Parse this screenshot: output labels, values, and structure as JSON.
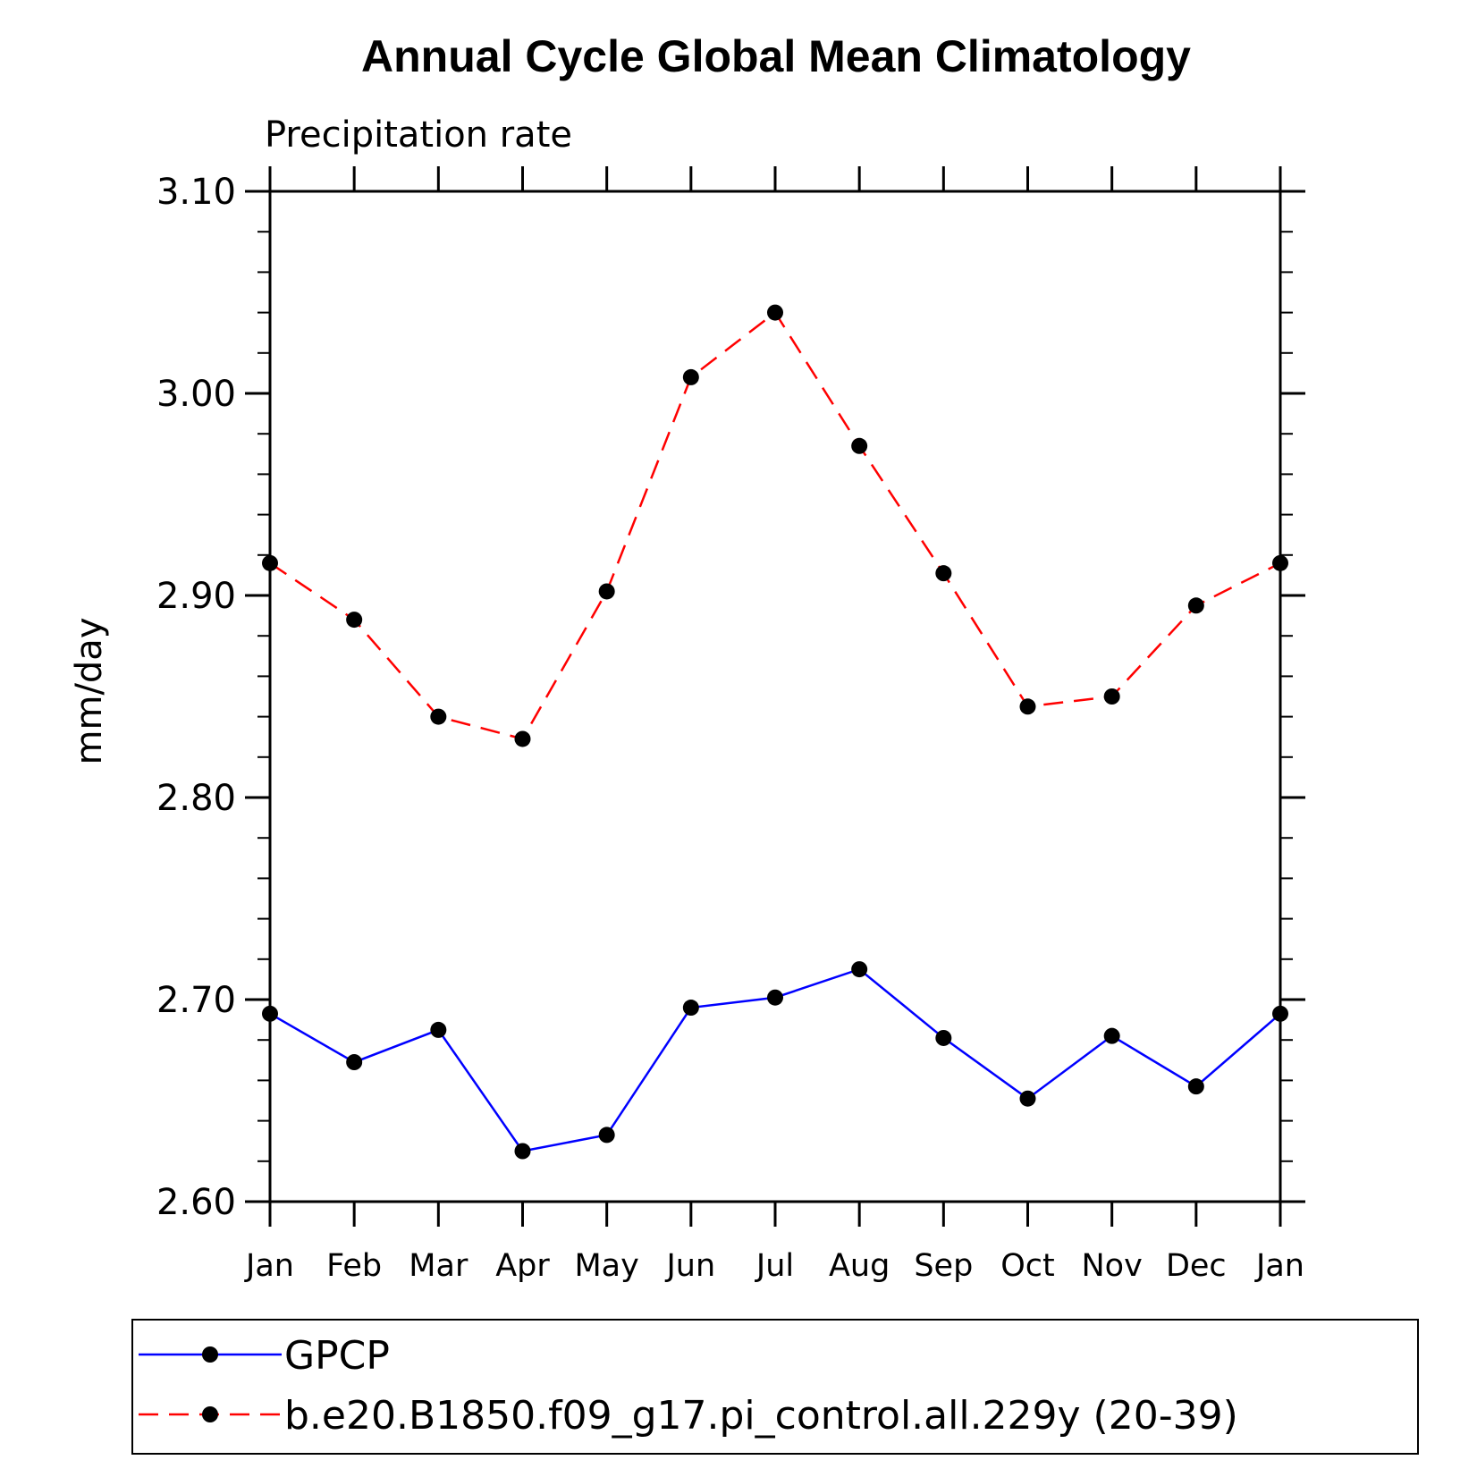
{
  "chart_data": {
    "type": "line",
    "title": "Annual Cycle Global Mean Climatology",
    "subtitle": "Precipitation rate",
    "xlabel": "",
    "ylabel": "mm/day",
    "ylim": [
      2.6,
      3.1
    ],
    "yticks": [
      "3.10",
      "3.00",
      "2.90",
      "2.80",
      "2.70",
      "2.60"
    ],
    "ytick_values": [
      3.1,
      3.0,
      2.9,
      2.8,
      2.7,
      2.6
    ],
    "categories": [
      "Jan",
      "Feb",
      "Mar",
      "Apr",
      "May",
      "Jun",
      "Jul",
      "Aug",
      "Sep",
      "Oct",
      "Nov",
      "Dec",
      "Jan"
    ],
    "grid": false,
    "legend_position": "bottom",
    "series": [
      {
        "name": "GPCP",
        "color": "#0000ff",
        "style": "solid",
        "marker": "filled-circle",
        "values": [
          2.693,
          2.669,
          2.685,
          2.625,
          2.633,
          2.696,
          2.701,
          2.715,
          2.681,
          2.651,
          2.682,
          2.657,
          2.693
        ]
      },
      {
        "name": "b.e20.B1850.f09_g17.pi_control.all.229y (20-39)",
        "color": "#ff0000",
        "style": "dashed",
        "marker": "filled-circle",
        "values": [
          2.916,
          2.888,
          2.84,
          2.829,
          2.902,
          3.008,
          3.04,
          2.974,
          2.911,
          2.845,
          2.85,
          2.895,
          2.916
        ]
      }
    ]
  }
}
